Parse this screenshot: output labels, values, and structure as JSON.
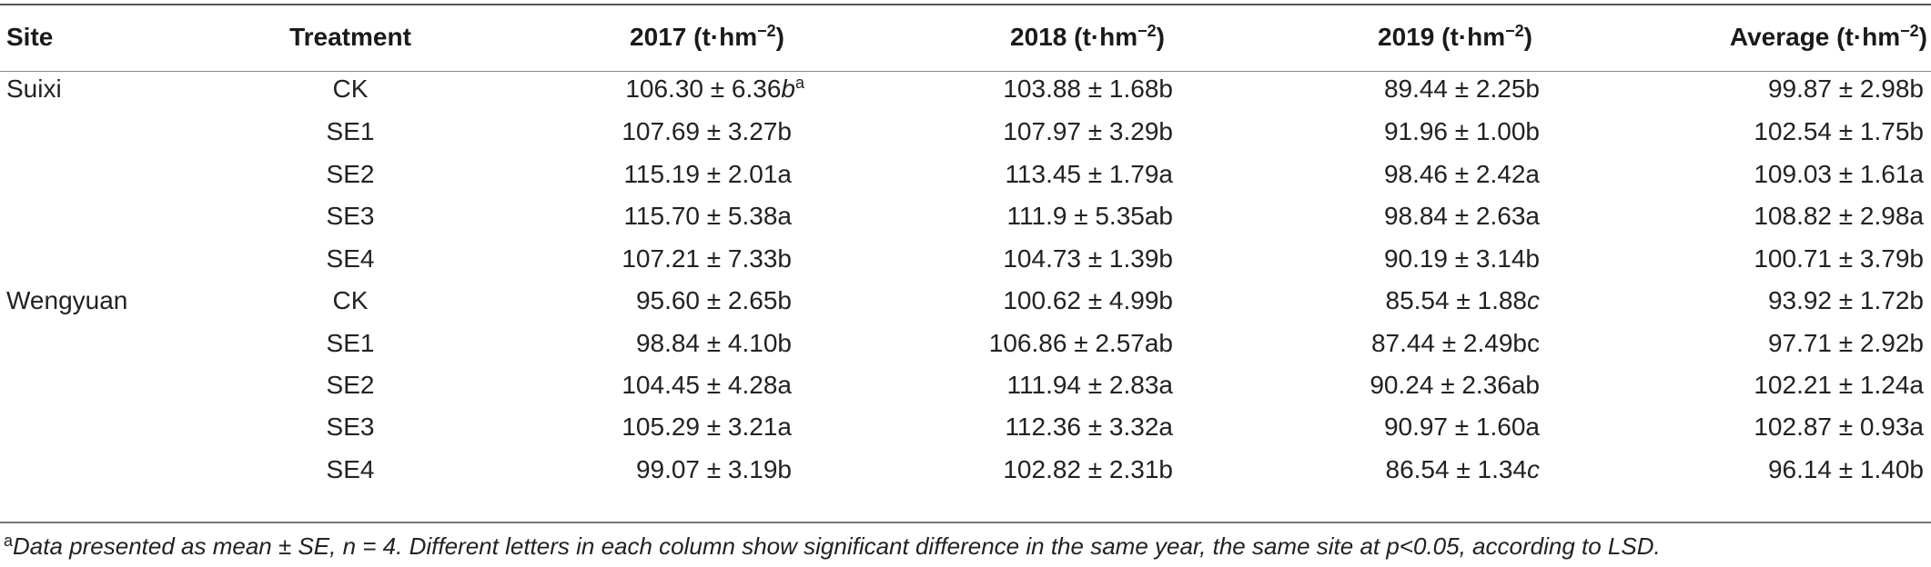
{
  "headers": {
    "site": "Site",
    "treatment": "Treatment",
    "y2017": "2017 (t·hm",
    "y2018": "2018 (t·hm",
    "y2019": "2019 (t·hm",
    "average": "Average (t·hm",
    "unit_exp": "−2",
    "close": ")"
  },
  "rows": [
    {
      "site": "Suixi",
      "treatment": "CK",
      "v2017": "106.30 ± 6.36",
      "v2017_letter": "b",
      "v2017_sup": "a",
      "v2018": "103.88 ± 1.68b",
      "v2019": "89.44 ± 2.25b",
      "avg": "99.87 ± 2.98b"
    },
    {
      "site": "",
      "treatment": "SE1",
      "v2017": "107.69 ± 3.27b",
      "v2017_letter": "",
      "v2017_sup": "",
      "v2018": "107.97 ± 3.29b",
      "v2019": "91.96 ± 1.00b",
      "avg": "102.54 ± 1.75b"
    },
    {
      "site": "",
      "treatment": "SE2",
      "v2017": "115.19 ± 2.01a",
      "v2017_letter": "",
      "v2017_sup": "",
      "v2018": "113.45 ± 1.79a",
      "v2019": "98.46 ± 2.42a",
      "avg": "109.03 ± 1.61a"
    },
    {
      "site": "",
      "treatment": "SE3",
      "v2017": "115.70 ± 5.38a",
      "v2017_letter": "",
      "v2017_sup": "",
      "v2018": "111.9 ± 5.35ab",
      "v2019": "98.84 ± 2.63a",
      "avg": "108.82 ± 2.98a"
    },
    {
      "site": "",
      "treatment": "SE4",
      "v2017": "107.21 ± 7.33b",
      "v2017_letter": "",
      "v2017_sup": "",
      "v2018": "104.73 ± 1.39b",
      "v2019": "90.19 ± 3.14b",
      "avg": "100.71 ± 3.79b"
    },
    {
      "site": "Wengyuan",
      "treatment": "CK",
      "v2017": "95.60 ± 2.65b",
      "v2017_letter": "",
      "v2017_sup": "",
      "v2018": "100.62 ± 4.99b",
      "v2019": "85.54 ± 1.88",
      "v2019_letter": "c",
      "avg": "93.92 ± 1.72b"
    },
    {
      "site": "",
      "treatment": "SE1",
      "v2017": "98.84 ± 4.10b",
      "v2017_letter": "",
      "v2017_sup": "",
      "v2018": "106.86 ± 2.57ab",
      "v2019": "87.44 ± 2.49bc",
      "v2019_letter": "",
      "avg": "97.71 ± 2.92b"
    },
    {
      "site": "",
      "treatment": "SE2",
      "v2017": "104.45 ± 4.28a",
      "v2017_letter": "",
      "v2017_sup": "",
      "v2018": "111.94 ± 2.83a",
      "v2019": "90.24 ± 2.36ab",
      "v2019_letter": "",
      "avg": "102.21 ± 1.24a"
    },
    {
      "site": "",
      "treatment": "SE3",
      "v2017": "105.29 ± 3.21a",
      "v2017_letter": "",
      "v2017_sup": "",
      "v2018": "112.36 ± 3.32a",
      "v2019": "90.97 ± 1.60a",
      "v2019_letter": "",
      "avg": "102.87 ± 0.93a"
    },
    {
      "site": "",
      "treatment": "SE4",
      "v2017": "99.07 ± 3.19b",
      "v2017_letter": "",
      "v2017_sup": "",
      "v2018": "102.82 ± 2.31b",
      "v2019": "86.54 ± 1.34",
      "v2019_letter": "c",
      "avg": "96.14 ± 1.40b"
    }
  ],
  "footnote": {
    "marker": "a",
    "text": "Data presented as mean ± SE, n = 4. Different letters in each column show significant difference in the same year, the same site at p<0.05, according to LSD."
  }
}
